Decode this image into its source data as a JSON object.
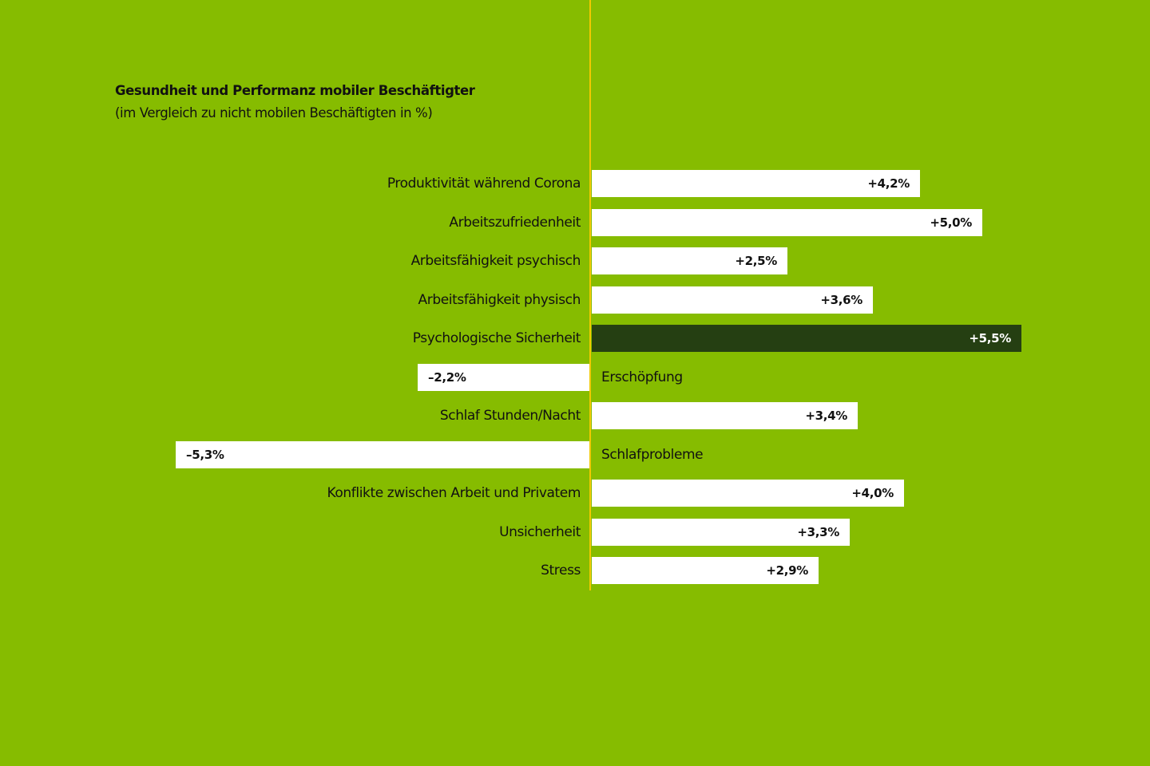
{
  "header": {
    "title": "Gesundheit und Performanz mobiler Beschäftigter",
    "subtitle": "(im Vergleich zu nicht mobilen Beschäftigten in %)"
  },
  "colors": {
    "background": "#86bc00",
    "bar": "#ffffff",
    "highlight_bar": "#253f12",
    "axis": "#f2c900"
  },
  "chart_data": {
    "type": "bar",
    "orientation": "horizontal",
    "title": "Gesundheit und Performanz mobiler Beschäftigter",
    "subtitle": "(im Vergleich zu nicht mobilen Beschäftigten in %)",
    "xlabel": "",
    "ylabel": "",
    "unit": "%",
    "xlim": [
      -5.3,
      5.5
    ],
    "grid": false,
    "legend": null,
    "categories": [
      "Produktivität während Corona",
      "Arbeitszufriedenheit",
      "Arbeitsfähigkeit psychisch",
      "Arbeitsfähigkeit physisch",
      "Psychologische Sicherheit",
      "Erschöpfung",
      "Schlaf Stunden/Nacht",
      "Schlafprobleme",
      "Konflikte zwischen Arbeit und Privatem",
      "Unsicherheit",
      "Stress"
    ],
    "values": [
      4.2,
      5.0,
      2.5,
      3.6,
      5.5,
      -2.2,
      3.4,
      -5.3,
      4.0,
      3.3,
      2.9
    ],
    "value_labels": [
      "+4,2%",
      "+5,0%",
      "+2,5%",
      "+3,6%",
      "+5,5%",
      "–2,2%",
      "+3,4%",
      "–5,3%",
      "+4,0%",
      "+3,3%",
      "+2,9%"
    ],
    "highlighted": [
      "Psychologische Sicherheit"
    ]
  }
}
